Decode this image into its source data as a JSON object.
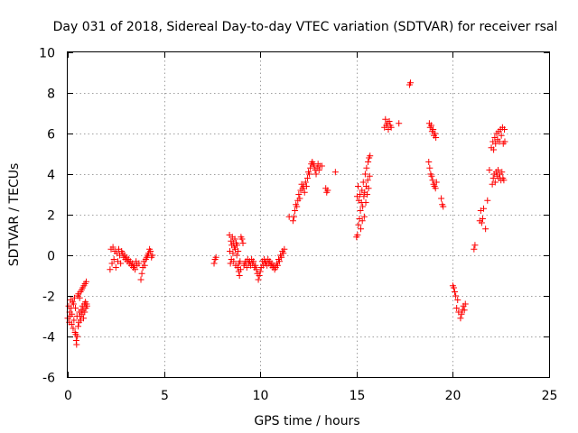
{
  "chart_data": {
    "type": "scatter",
    "title": "Day 031 of 2018, Sidereal Day-to-day VTEC variation (SDTVAR) for receiver rsal",
    "xlabel": "GPS time / hours",
    "ylabel": "SDTVAR / TECUs",
    "xlim": [
      0,
      25
    ],
    "ylim": [
      -6,
      10
    ],
    "xticks": [
      0,
      5,
      10,
      15,
      20,
      25
    ],
    "yticks": [
      -6,
      -4,
      -2,
      0,
      2,
      4,
      6,
      8,
      10
    ],
    "grid": true,
    "marker": "plus",
    "color": "#ff0000",
    "series": [
      {
        "name": "SDTVAR",
        "points": [
          [
            0.0,
            -3.1
          ],
          [
            0.05,
            -2.5
          ],
          [
            0.08,
            -3.3
          ],
          [
            0.1,
            -2.8
          ],
          [
            0.12,
            -3.0
          ],
          [
            0.15,
            -2.2
          ],
          [
            0.18,
            -2.6
          ],
          [
            0.2,
            -3.4
          ],
          [
            0.22,
            -2.9
          ],
          [
            0.25,
            -2.3
          ],
          [
            0.28,
            -3.6
          ],
          [
            0.3,
            -2.4
          ],
          [
            0.32,
            -3.2
          ],
          [
            0.35,
            -2.1
          ],
          [
            0.38,
            -3.8
          ],
          [
            0.4,
            -2.6
          ],
          [
            0.42,
            -3.9
          ],
          [
            0.44,
            -4.2
          ],
          [
            0.46,
            -4.4
          ],
          [
            0.48,
            -3.0
          ],
          [
            0.5,
            -4.0
          ],
          [
            0.52,
            -2.0
          ],
          [
            0.54,
            -3.5
          ],
          [
            0.56,
            -1.9
          ],
          [
            0.58,
            -3.3
          ],
          [
            0.6,
            -2.8
          ],
          [
            0.62,
            -2.1
          ],
          [
            0.64,
            -3.0
          ],
          [
            0.66,
            -1.8
          ],
          [
            0.68,
            -3.2
          ],
          [
            0.7,
            -2.7
          ],
          [
            0.72,
            -1.7
          ],
          [
            0.74,
            -2.9
          ],
          [
            0.76,
            -2.5
          ],
          [
            0.78,
            -1.6
          ],
          [
            0.8,
            -2.7
          ],
          [
            0.82,
            -3.1
          ],
          [
            0.84,
            -1.5
          ],
          [
            0.86,
            -2.4
          ],
          [
            0.88,
            -2.8
          ],
          [
            0.9,
            -1.4
          ],
          [
            0.92,
            -2.3
          ],
          [
            0.94,
            -2.6
          ],
          [
            0.96,
            -1.3
          ],
          [
            0.98,
            -2.4
          ],
          [
            1.0,
            -2.5
          ],
          [
            2.2,
            -0.7
          ],
          [
            2.25,
            0.3
          ],
          [
            2.3,
            -0.4
          ],
          [
            2.35,
            0.4
          ],
          [
            2.4,
            -0.2
          ],
          [
            2.45,
            0.2
          ],
          [
            2.5,
            -0.6
          ],
          [
            2.55,
            0.1
          ],
          [
            2.6,
            -0.3
          ],
          [
            2.65,
            0.3
          ],
          [
            2.7,
            0.0
          ],
          [
            2.75,
            -0.4
          ],
          [
            2.8,
            0.2
          ],
          [
            2.85,
            0.1
          ],
          [
            2.9,
            -0.1
          ],
          [
            2.95,
            0.0
          ],
          [
            3.0,
            -0.2
          ],
          [
            3.05,
            -0.1
          ],
          [
            3.1,
            -0.3
          ],
          [
            3.15,
            -0.2
          ],
          [
            3.2,
            -0.4
          ],
          [
            3.25,
            -0.3
          ],
          [
            3.3,
            -0.5
          ],
          [
            3.35,
            -0.4
          ],
          [
            3.4,
            -0.6
          ],
          [
            3.45,
            -0.5
          ],
          [
            3.5,
            -0.7
          ],
          [
            3.55,
            -0.3
          ],
          [
            3.6,
            -0.5
          ],
          [
            3.7,
            -0.4
          ],
          [
            3.8,
            -1.2
          ],
          [
            3.85,
            -0.9
          ],
          [
            3.9,
            -0.6
          ],
          [
            3.95,
            -0.3
          ],
          [
            4.0,
            -0.5
          ],
          [
            4.05,
            -0.2
          ],
          [
            4.1,
            -0.1
          ],
          [
            4.15,
            0.0
          ],
          [
            4.2,
            0.1
          ],
          [
            4.25,
            0.3
          ],
          [
            4.3,
            0.2
          ],
          [
            4.35,
            -0.1
          ],
          [
            4.4,
            0.0
          ],
          [
            7.6,
            -0.4
          ],
          [
            7.65,
            -0.2
          ],
          [
            7.7,
            -0.1
          ],
          [
            8.4,
            1.0
          ],
          [
            8.42,
            0.2
          ],
          [
            8.45,
            -0.4
          ],
          [
            8.48,
            0.7
          ],
          [
            8.5,
            -0.2
          ],
          [
            8.52,
            0.5
          ],
          [
            8.55,
            0.9
          ],
          [
            8.58,
            0.1
          ],
          [
            8.6,
            0.6
          ],
          [
            8.62,
            -0.3
          ],
          [
            8.65,
            0.4
          ],
          [
            8.68,
            0.8
          ],
          [
            8.7,
            0.3
          ],
          [
            8.72,
            -0.5
          ],
          [
            8.75,
            0.6
          ],
          [
            8.78,
            0.0
          ],
          [
            8.8,
            0.5
          ],
          [
            8.82,
            -0.6
          ],
          [
            8.85,
            0.2
          ],
          [
            8.88,
            -0.8
          ],
          [
            8.9,
            -0.4
          ],
          [
            8.92,
            -1.0
          ],
          [
            8.95,
            -0.3
          ],
          [
            8.98,
            -0.7
          ],
          [
            9.0,
            0.9
          ],
          [
            9.05,
            0.8
          ],
          [
            9.1,
            0.6
          ],
          [
            9.15,
            -0.5
          ],
          [
            9.2,
            -0.4
          ],
          [
            9.25,
            -0.3
          ],
          [
            9.3,
            -0.6
          ],
          [
            9.35,
            -0.2
          ],
          [
            9.4,
            -0.4
          ],
          [
            9.45,
            -0.3
          ],
          [
            9.5,
            -0.5
          ],
          [
            9.55,
            -0.2
          ],
          [
            9.6,
            -0.4
          ],
          [
            9.65,
            -0.3
          ],
          [
            9.7,
            -0.6
          ],
          [
            9.75,
            -0.5
          ],
          [
            9.8,
            -0.7
          ],
          [
            9.85,
            -0.9
          ],
          [
            9.9,
            -1.2
          ],
          [
            9.95,
            -1.0
          ],
          [
            10.0,
            -0.8
          ],
          [
            10.05,
            -0.6
          ],
          [
            10.1,
            -0.3
          ],
          [
            10.15,
            -0.5
          ],
          [
            10.2,
            -0.2
          ],
          [
            10.25,
            -0.4
          ],
          [
            10.3,
            -0.3
          ],
          [
            10.35,
            -0.5
          ],
          [
            10.4,
            -0.2
          ],
          [
            10.45,
            -0.4
          ],
          [
            10.5,
            -0.3
          ],
          [
            10.55,
            -0.5
          ],
          [
            10.6,
            -0.4
          ],
          [
            10.65,
            -0.6
          ],
          [
            10.7,
            -0.5
          ],
          [
            10.75,
            -0.7
          ],
          [
            10.8,
            -0.6
          ],
          [
            10.85,
            -0.4
          ],
          [
            10.9,
            -0.5
          ],
          [
            10.95,
            -0.2
          ],
          [
            11.0,
            -0.3
          ],
          [
            11.05,
            0.0
          ],
          [
            11.1,
            -0.1
          ],
          [
            11.15,
            0.2
          ],
          [
            11.2,
            0.1
          ],
          [
            11.25,
            0.3
          ],
          [
            11.5,
            1.9
          ],
          [
            11.7,
            1.7
          ],
          [
            11.75,
            1.9
          ],
          [
            11.8,
            2.2
          ],
          [
            11.85,
            2.5
          ],
          [
            11.9,
            2.4
          ],
          [
            11.95,
            2.7
          ],
          [
            12.0,
            3.0
          ],
          [
            12.05,
            2.8
          ],
          [
            12.1,
            3.2
          ],
          [
            12.15,
            3.5
          ],
          [
            12.2,
            3.3
          ],
          [
            12.25,
            3.4
          ],
          [
            12.3,
            3.1
          ],
          [
            12.35,
            3.6
          ],
          [
            12.4,
            3.4
          ],
          [
            12.45,
            3.8
          ],
          [
            12.5,
            4.1
          ],
          [
            12.55,
            4.0
          ],
          [
            12.6,
            4.3
          ],
          [
            12.65,
            4.5
          ],
          [
            12.7,
            4.6
          ],
          [
            12.75,
            4.5
          ],
          [
            12.8,
            4.4
          ],
          [
            12.85,
            4.2
          ],
          [
            12.9,
            4.0
          ],
          [
            12.95,
            4.3
          ],
          [
            13.0,
            4.5
          ],
          [
            13.05,
            4.2
          ],
          [
            13.1,
            4.4
          ],
          [
            13.2,
            4.4
          ],
          [
            13.4,
            3.3
          ],
          [
            13.45,
            3.1
          ],
          [
            13.5,
            3.2
          ],
          [
            13.9,
            4.1
          ],
          [
            15.0,
            0.9
          ],
          [
            15.03,
            2.9
          ],
          [
            15.05,
            1.0
          ],
          [
            15.08,
            3.4
          ],
          [
            15.1,
            1.5
          ],
          [
            15.12,
            2.7
          ],
          [
            15.15,
            1.8
          ],
          [
            15.18,
            3.0
          ],
          [
            15.2,
            2.2
          ],
          [
            15.22,
            1.3
          ],
          [
            15.25,
            2.6
          ],
          [
            15.28,
            3.2
          ],
          [
            15.3,
            1.7
          ],
          [
            15.32,
            2.4
          ],
          [
            15.35,
            3.6
          ],
          [
            15.38,
            2.9
          ],
          [
            15.4,
            1.9
          ],
          [
            15.42,
            3.1
          ],
          [
            15.45,
            4.0
          ],
          [
            15.48,
            2.6
          ],
          [
            15.5,
            3.4
          ],
          [
            15.52,
            4.3
          ],
          [
            15.55,
            3.0
          ],
          [
            15.58,
            3.7
          ],
          [
            15.6,
            4.6
          ],
          [
            15.62,
            3.3
          ],
          [
            15.65,
            4.8
          ],
          [
            15.68,
            3.9
          ],
          [
            15.7,
            4.9
          ],
          [
            16.45,
            6.3
          ],
          [
            16.5,
            6.7
          ],
          [
            16.55,
            6.4
          ],
          [
            16.6,
            6.5
          ],
          [
            16.65,
            6.2
          ],
          [
            16.7,
            6.6
          ],
          [
            16.75,
            6.4
          ],
          [
            16.8,
            6.3
          ],
          [
            17.2,
            6.5
          ],
          [
            17.75,
            8.4
          ],
          [
            17.8,
            8.5
          ],
          [
            18.75,
            4.6
          ],
          [
            18.78,
            6.5
          ],
          [
            18.8,
            4.3
          ],
          [
            18.82,
            6.3
          ],
          [
            18.85,
            4.0
          ],
          [
            18.88,
            6.4
          ],
          [
            18.9,
            3.9
          ],
          [
            18.92,
            6.1
          ],
          [
            18.95,
            3.7
          ],
          [
            18.98,
            6.2
          ],
          [
            19.0,
            3.5
          ],
          [
            19.02,
            5.9
          ],
          [
            19.05,
            3.4
          ],
          [
            19.08,
            6.0
          ],
          [
            19.1,
            3.3
          ],
          [
            19.12,
            5.8
          ],
          [
            19.15,
            3.6
          ],
          [
            19.4,
            2.8
          ],
          [
            19.45,
            2.5
          ],
          [
            19.5,
            2.4
          ],
          [
            20.0,
            -1.5
          ],
          [
            20.05,
            -1.6
          ],
          [
            20.1,
            -1.8
          ],
          [
            20.15,
            -2.0
          ],
          [
            20.2,
            -2.6
          ],
          [
            20.25,
            -2.2
          ],
          [
            20.3,
            -2.8
          ],
          [
            20.4,
            -3.1
          ],
          [
            20.45,
            -2.9
          ],
          [
            20.5,
            -2.7
          ],
          [
            20.55,
            -2.5
          ],
          [
            20.6,
            -2.7
          ],
          [
            20.65,
            -2.4
          ],
          [
            21.1,
            0.3
          ],
          [
            21.15,
            0.5
          ],
          [
            21.4,
            1.7
          ],
          [
            21.45,
            2.2
          ],
          [
            21.5,
            1.6
          ],
          [
            21.55,
            1.8
          ],
          [
            21.6,
            2.3
          ],
          [
            21.7,
            1.3
          ],
          [
            21.8,
            2.7
          ],
          [
            21.9,
            4.2
          ],
          [
            22.0,
            5.3
          ],
          [
            22.05,
            3.5
          ],
          [
            22.08,
            5.6
          ],
          [
            22.1,
            3.8
          ],
          [
            22.12,
            5.2
          ],
          [
            22.15,
            4.0
          ],
          [
            22.18,
            5.8
          ],
          [
            22.2,
            3.6
          ],
          [
            22.22,
            5.5
          ],
          [
            22.25,
            4.1
          ],
          [
            22.28,
            6.0
          ],
          [
            22.3,
            3.9
          ],
          [
            22.32,
            5.7
          ],
          [
            22.35,
            4.2
          ],
          [
            22.38,
            6.1
          ],
          [
            22.4,
            3.8
          ],
          [
            22.42,
            5.6
          ],
          [
            22.45,
            4.0
          ],
          [
            22.48,
            6.2
          ],
          [
            22.5,
            3.7
          ],
          [
            22.52,
            5.9
          ],
          [
            22.55,
            4.1
          ],
          [
            22.58,
            6.3
          ],
          [
            22.6,
            3.8
          ],
          [
            22.62,
            5.5
          ],
          [
            22.65,
            3.7
          ],
          [
            22.68,
            6.2
          ],
          [
            22.7,
            5.6
          ]
        ]
      }
    ]
  }
}
